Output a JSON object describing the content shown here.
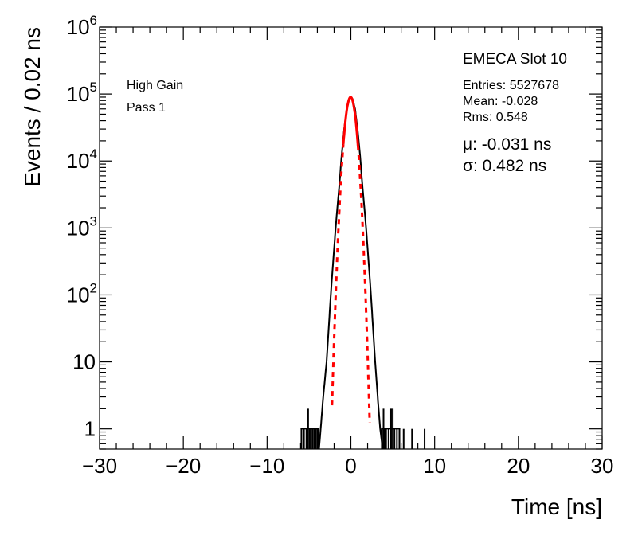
{
  "chart_data": {
    "type": "histogram",
    "title": "EMECA Slot 10",
    "xlabel": "Time [ns]",
    "ylabel": "Events / 0.02 ns",
    "xlim": [
      -30,
      30
    ],
    "ylim": [
      0.5,
      1000000
    ],
    "y_scale": "log",
    "grid": false,
    "x_ticks": [
      "−30",
      "−20",
      "−10",
      "0",
      "10",
      "20",
      "30"
    ],
    "y_ticks": [
      {
        "base": "1",
        "exp": ""
      },
      {
        "base": "10",
        "exp": ""
      },
      {
        "base": "10",
        "exp": "2"
      },
      {
        "base": "10",
        "exp": "3"
      },
      {
        "base": "10",
        "exp": "4"
      },
      {
        "base": "10",
        "exp": "5"
      },
      {
        "base": "10",
        "exp": "6"
      }
    ],
    "annotations": {
      "gain": "High Gain",
      "pass": "Pass 1"
    },
    "stats": {
      "entries": "Entries: 5527678",
      "mean": "Mean: -0.028",
      "rms": "Rms: 0.548"
    },
    "fit": {
      "mu_text": "μ: -0.031 ns",
      "sigma_text": "σ: 0.482 ns",
      "mu": -0.031,
      "sigma": 0.482,
      "amplitude": 90000,
      "color": "#ff0000"
    },
    "series": [
      {
        "color": "#000000",
        "x": [
          -3.8,
          -3.3,
          -2.9,
          -2.6,
          -2.3,
          -2.0,
          -1.7,
          -1.4,
          -1.1,
          -0.8,
          -0.5,
          -0.2,
          0.0,
          0.2,
          0.5,
          0.8,
          1.1,
          1.4,
          1.7,
          2.0,
          2.3,
          2.6,
          2.9,
          3.2,
          3.5,
          3.8
        ],
        "y": [
          0.5,
          3,
          10,
          40,
          150,
          500,
          1500,
          4000,
          12000,
          30000,
          60000,
          85000,
          90000,
          85000,
          60000,
          30000,
          12000,
          4000,
          1500,
          500,
          150,
          40,
          10,
          3,
          1,
          0.5
        ]
      }
    ],
    "sparse_bins": {
      "x": [
        -5.9,
        -5.6,
        -5.3,
        -5.1,
        -4.9,
        -4.6,
        -4.4,
        -4.2,
        -4.0,
        -3.9,
        3.7,
        3.9,
        4.0,
        4.2,
        4.5,
        4.8,
        5.0,
        5.2,
        5.5,
        5.8,
        6.3,
        7.3,
        8.8
      ],
      "y": [
        1,
        1,
        1,
        2,
        1,
        1,
        1,
        1,
        1,
        1,
        1,
        2,
        1,
        1,
        1,
        2,
        2,
        1,
        1,
        1,
        1,
        1,
        1
      ]
    }
  }
}
